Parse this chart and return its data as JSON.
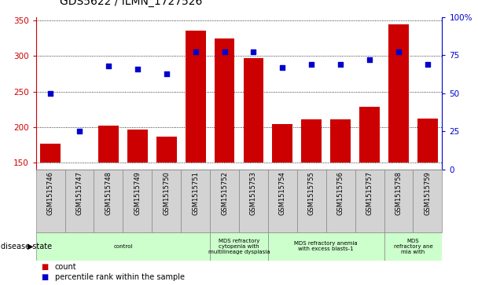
{
  "title": "GDS5622 / ILMN_1727526",
  "samples": [
    "GSM1515746",
    "GSM1515747",
    "GSM1515748",
    "GSM1515749",
    "GSM1515750",
    "GSM1515751",
    "GSM1515752",
    "GSM1515753",
    "GSM1515754",
    "GSM1515755",
    "GSM1515756",
    "GSM1515757",
    "GSM1515758",
    "GSM1515759"
  ],
  "counts": [
    176,
    150,
    202,
    196,
    186,
    336,
    325,
    297,
    204,
    211,
    211,
    229,
    345,
    212
  ],
  "percentile_ranks": [
    50,
    25,
    68,
    66,
    63,
    77,
    77,
    77,
    67,
    69,
    69,
    72,
    77,
    69
  ],
  "ylim_left": [
    140,
    355
  ],
  "ylim_right": [
    0,
    100
  ],
  "yticks_left": [
    150,
    200,
    250,
    300,
    350
  ],
  "yticks_right": [
    0,
    25,
    50,
    75,
    100
  ],
  "bar_color": "#cc0000",
  "scatter_color": "#0000cc",
  "bar_width": 0.7,
  "disease_states": [
    {
      "label": "control",
      "start": 0,
      "end": 6,
      "color": "#ccffcc"
    },
    {
      "label": "MDS refractory\ncytopenia with\nmultilineage dysplasia",
      "start": 6,
      "end": 8,
      "color": "#ccffcc"
    },
    {
      "label": "MDS refractory anemia\nwith excess blasts-1",
      "start": 8,
      "end": 12,
      "color": "#ccffcc"
    },
    {
      "label": "MDS\nrefractory ane\nmia with",
      "start": 12,
      "end": 14,
      "color": "#ccffcc"
    }
  ],
  "legend_items": [
    {
      "label": "count",
      "color": "#cc0000"
    },
    {
      "label": "percentile rank within the sample",
      "color": "#0000cc"
    }
  ],
  "box_color": "#d3d3d3",
  "box_edge_color": "#888888",
  "grid_color": "#000000",
  "left_axis_color": "#cc0000",
  "right_axis_color": "#0000cc"
}
